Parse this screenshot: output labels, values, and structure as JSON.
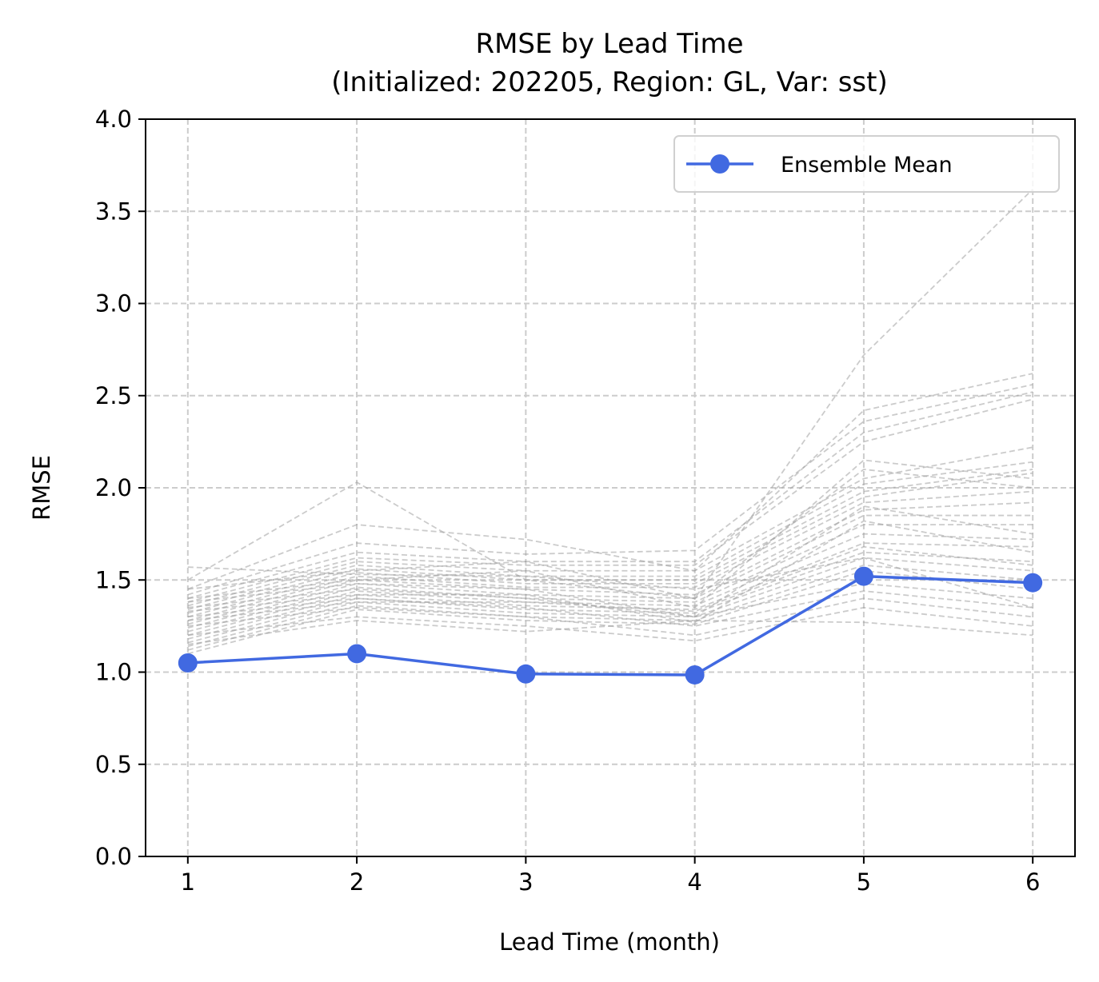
{
  "chart_data": {
    "type": "line",
    "title": "RMSE by Lead Time",
    "subtitle": "(Initialized: 202205, Region: GL, Var: sst)",
    "xlabel": "Lead Time (month)",
    "ylabel": "RMSE",
    "xlim": [
      0.75,
      6.25
    ],
    "ylim": [
      0.0,
      4.0
    ],
    "xticks": [
      1,
      2,
      3,
      4,
      5,
      6
    ],
    "yticks": [
      0.0,
      0.5,
      1.0,
      1.5,
      2.0,
      2.5,
      3.0,
      3.5,
      4.0
    ],
    "xtick_labels": [
      "1",
      "2",
      "3",
      "4",
      "5",
      "6"
    ],
    "ytick_labels": [
      "0.0",
      "0.5",
      "1.0",
      "1.5",
      "2.0",
      "2.5",
      "3.0",
      "3.5",
      "4.0"
    ],
    "grid": true,
    "legend_position": "top-right",
    "x": [
      1,
      2,
      3,
      4,
      5,
      6
    ],
    "series": [
      {
        "name": "Ensemble Mean",
        "color": "#4169e1",
        "values": [
          1.05,
          1.1,
          0.99,
          0.985,
          1.52,
          1.485
        ]
      }
    ],
    "members": {
      "color": "#a0a0a0",
      "style": "dashed",
      "values": [
        [
          1.57,
          1.53,
          1.52,
          1.45,
          1.62,
          1.35
        ],
        [
          1.5,
          2.03,
          1.5,
          1.4,
          2.72,
          3.62
        ],
        [
          1.45,
          1.8,
          1.72,
          1.55,
          2.42,
          2.62
        ],
        [
          1.42,
          1.7,
          1.64,
          1.66,
          2.36,
          2.56
        ],
        [
          1.4,
          1.65,
          1.6,
          1.6,
          2.3,
          2.52
        ],
        [
          1.38,
          1.62,
          1.58,
          1.58,
          2.25,
          2.48
        ],
        [
          1.36,
          1.6,
          1.55,
          1.55,
          2.05,
          2.22
        ],
        [
          1.34,
          1.58,
          1.52,
          1.52,
          2.02,
          2.14
        ],
        [
          1.32,
          1.56,
          1.5,
          1.5,
          1.98,
          2.1
        ],
        [
          1.3,
          1.54,
          1.48,
          1.48,
          1.95,
          2.08
        ],
        [
          1.28,
          1.52,
          1.46,
          1.46,
          1.92,
          1.98
        ],
        [
          1.26,
          1.5,
          1.45,
          1.42,
          1.88,
          1.92
        ],
        [
          1.24,
          1.48,
          1.42,
          1.4,
          1.85,
          1.85
        ],
        [
          1.22,
          1.46,
          1.4,
          1.38,
          1.8,
          1.8
        ],
        [
          1.2,
          1.44,
          1.38,
          1.36,
          1.75,
          1.72
        ],
        [
          1.18,
          1.42,
          1.36,
          1.34,
          1.7,
          1.68
        ],
        [
          1.16,
          1.4,
          1.34,
          1.32,
          1.65,
          1.6
        ],
        [
          1.14,
          1.38,
          1.32,
          1.3,
          1.62,
          1.55
        ],
        [
          1.12,
          1.36,
          1.3,
          1.28,
          1.58,
          1.5
        ],
        [
          1.1,
          1.34,
          1.28,
          1.26,
          1.55,
          1.45
        ],
        [
          1.35,
          1.45,
          1.4,
          1.3,
          1.48,
          1.4
        ],
        [
          1.3,
          1.4,
          1.35,
          1.25,
          1.44,
          1.35
        ],
        [
          1.25,
          1.35,
          1.3,
          1.2,
          1.4,
          1.3
        ],
        [
          1.2,
          1.3,
          1.25,
          1.17,
          1.35,
          1.25
        ],
        [
          1.15,
          1.28,
          1.22,
          1.28,
          1.27,
          1.2
        ],
        [
          1.45,
          1.55,
          1.6,
          1.4,
          2.1,
          2.0
        ],
        [
          1.4,
          1.5,
          1.55,
          1.35,
          2.15,
          2.05
        ],
        [
          1.38,
          1.48,
          1.45,
          1.3,
          1.9,
          1.75
        ],
        [
          1.33,
          1.42,
          1.42,
          1.27,
          1.82,
          1.65
        ],
        [
          1.28,
          1.38,
          1.38,
          1.33,
          1.68,
          1.58
        ]
      ]
    }
  }
}
